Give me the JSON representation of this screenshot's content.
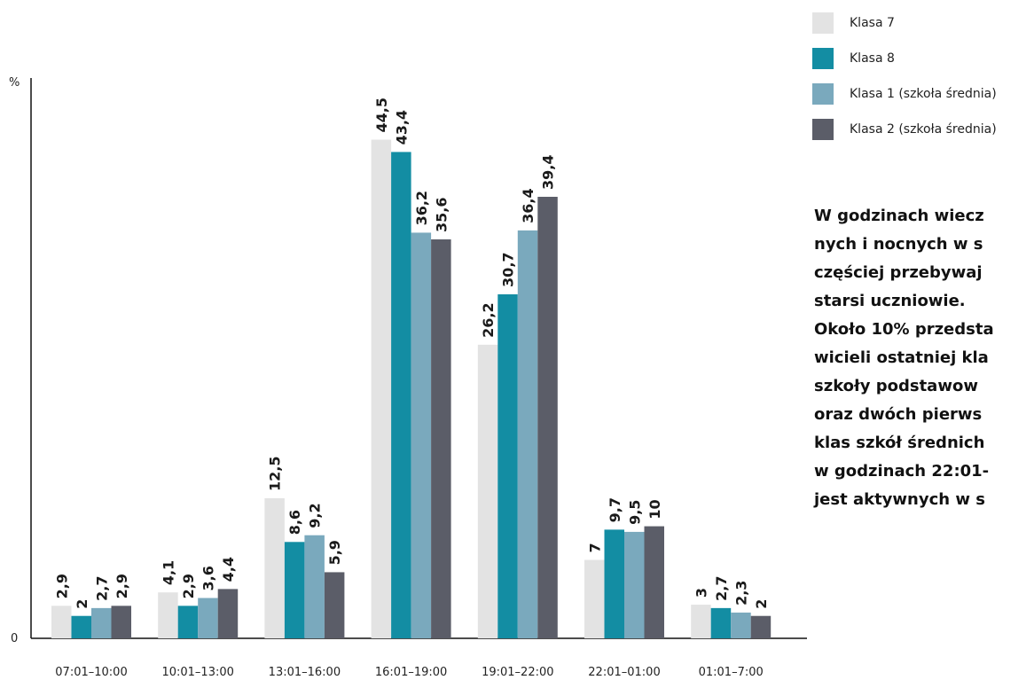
{
  "chart_data": {
    "type": "bar",
    "ylabel": "%",
    "ylim": [
      0,
      50
    ],
    "y_ticks": [
      "0"
    ],
    "categories": [
      "07:01–10:00",
      "10:01–13:00",
      "13:01–16:00",
      "16:01–19:00",
      "19:01–22:00",
      "22:01–01:00",
      "01:01–7:00"
    ],
    "series": [
      {
        "name": "Klasa 7",
        "color": "#e3e3e3",
        "values": [
          2.9,
          4.1,
          12.5,
          44.5,
          26.2,
          7,
          3
        ],
        "labels": [
          "2,9",
          "4,1",
          "12,5",
          "44,5",
          "26,2",
          "7",
          "3"
        ]
      },
      {
        "name": "Klasa 8",
        "color": "#138da3",
        "values": [
          2,
          2.9,
          8.6,
          43.4,
          30.7,
          9.7,
          2.7
        ],
        "labels": [
          "2",
          "2,9",
          "8,6",
          "43,4",
          "30,7",
          "9,7",
          "2,7"
        ]
      },
      {
        "name": "Klasa 1 (szkoła średnia)",
        "color": "#7aa9bd",
        "values": [
          2.7,
          3.6,
          9.2,
          36.2,
          36.4,
          9.5,
          2.3
        ],
        "labels": [
          "2,7",
          "3,6",
          "9,2",
          "36,2",
          "36,4",
          "9,5",
          "2,3"
        ]
      },
      {
        "name": "Klasa 2 (szkoła średnia)",
        "color": "#5b5d68",
        "values": [
          2.9,
          4.4,
          5.9,
          35.6,
          39.4,
          10,
          2
        ],
        "labels": [
          "2,9",
          "4,4",
          "5,9",
          "35,6",
          "39,4",
          "10",
          "2"
        ]
      }
    ],
    "legend_position": "top-right",
    "grid": false
  },
  "note": {
    "lines": [
      "W godzinach wiecz",
      "nych i nocnych w s",
      "częściej przebywaj",
      "starsi uczniowie.",
      "Około 10% przedsta",
      "wicieli ostatniej kla",
      "szkoły podstawow",
      "oraz dwóch pierws",
      "klas szkół średnich",
      "w godzinach 22:01-",
      "jest aktywnych w s"
    ]
  }
}
